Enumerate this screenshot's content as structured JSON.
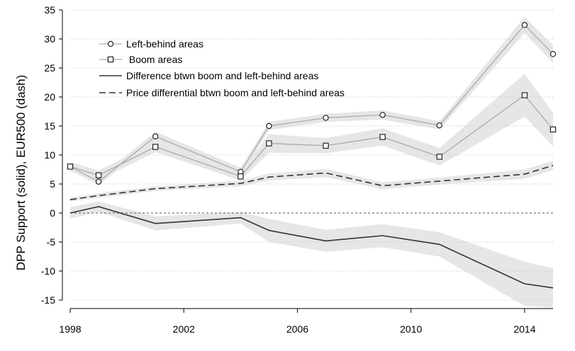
{
  "chart_data": {
    "type": "line",
    "title": "",
    "xlabel": "",
    "ylabel": "DPP Support (solid), EUR500 (dash)",
    "xlim": [
      1998,
      2015
    ],
    "ylim": [
      -15,
      35
    ],
    "x_ticks": [
      1998,
      2002,
      2006,
      2010,
      2014
    ],
    "x_tick_labels": [
      "1998",
      "2002",
      "2006",
      "2010",
      "2014"
    ],
    "y_ticks": [
      35,
      30,
      25,
      20,
      15,
      10,
      5,
      0,
      -5,
      -10,
      -15
    ],
    "y_tick_labels": [
      "35",
      "30",
      "25",
      "20",
      "15",
      "10",
      "5",
      "0",
      "-5",
      "-10",
      "-15"
    ],
    "grid": "horizontal dotted",
    "reference_line": 0,
    "legend_position": "top-left",
    "legend": [
      {
        "label": "Left-behind areas",
        "marker": "circle"
      },
      {
        "label": " Boom areas",
        "marker": "square"
      },
      {
        "label": "Difference btwn boom and left-behind areas",
        "style": "solid"
      },
      {
        "label": "Price differential btwn boom and left-behind areas",
        "style": "dash"
      }
    ],
    "series": [
      {
        "name": "Left-behind areas",
        "color": "#aaaaaa",
        "x": [
          1998,
          1999,
          2001,
          2004,
          2005,
          2007,
          2009,
          2011,
          2014,
          2015
        ],
        "y": [
          8.0,
          5.4,
          13.2,
          7.1,
          15.0,
          16.4,
          16.9,
          15.1,
          32.4,
          27.4
        ],
        "ci_low": [
          7.3,
          4.8,
          12.4,
          6.4,
          14.3,
          15.7,
          16.1,
          14.4,
          31.0,
          25.9
        ],
        "ci_high": [
          8.7,
          6.0,
          14.0,
          7.8,
          15.7,
          17.1,
          17.7,
          15.8,
          33.8,
          28.9
        ]
      },
      {
        "name": " Boom areas",
        "color": "#aaaaaa",
        "x": [
          1998,
          1999,
          2001,
          2004,
          2005,
          2007,
          2009,
          2011,
          2014,
          2015
        ],
        "y": [
          8.0,
          6.5,
          11.4,
          6.3,
          12.0,
          11.6,
          13.1,
          9.7,
          20.3,
          14.4
        ],
        "ci_low": [
          7.2,
          5.7,
          10.5,
          5.6,
          10.4,
          10.3,
          11.6,
          8.2,
          16.6,
          11.5
        ],
        "ci_high": [
          8.8,
          7.3,
          12.3,
          7.0,
          13.6,
          12.9,
          14.6,
          11.2,
          24.0,
          17.3
        ]
      },
      {
        "name": "Difference btwn boom and left-behind areas",
        "color": "#333333",
        "x": [
          1998,
          1999,
          2001,
          2004,
          2005,
          2007,
          2009,
          2011,
          2014,
          2015
        ],
        "y": [
          0.0,
          1.1,
          -1.8,
          -0.8,
          -3.0,
          -4.8,
          -3.9,
          -5.4,
          -12.2,
          -12.9
        ],
        "ci_low": [
          -1.0,
          0.2,
          -3.0,
          -1.8,
          -5.0,
          -6.7,
          -5.9,
          -7.5,
          -16.0,
          -16.3
        ],
        "ci_high": [
          1.0,
          2.0,
          -0.6,
          0.2,
          -1.0,
          -2.9,
          -1.9,
          -3.3,
          -8.4,
          -9.5
        ]
      },
      {
        "name": "Price differential btwn boom and left-behind areas",
        "color": "#333333",
        "x": [
          1998,
          1999,
          2001,
          2004,
          2005,
          2007,
          2009,
          2011,
          2014,
          2015
        ],
        "y": [
          2.3,
          3.0,
          4.2,
          5.1,
          6.2,
          6.9,
          4.7,
          5.5,
          6.7,
          8.2
        ],
        "ci_low": [
          2.0,
          2.6,
          3.8,
          4.6,
          5.6,
          6.2,
          4.1,
          4.9,
          5.9,
          7.4
        ],
        "ci_high": [
          2.6,
          3.4,
          4.6,
          5.6,
          6.8,
          7.6,
          5.3,
          6.1,
          7.5,
          9.0
        ]
      }
    ]
  }
}
